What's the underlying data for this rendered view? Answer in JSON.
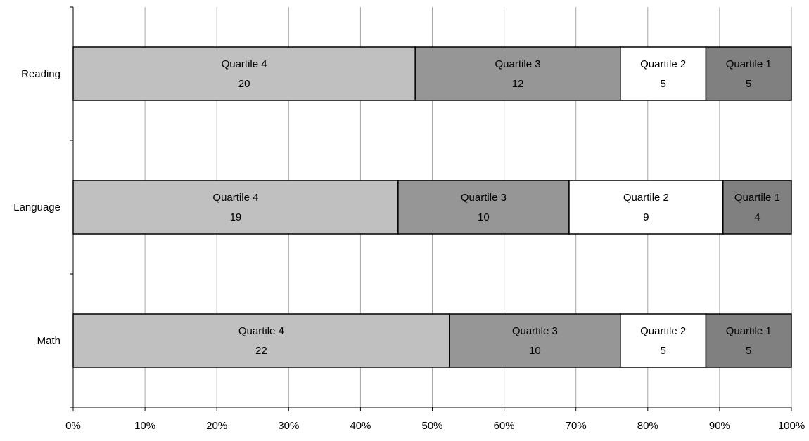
{
  "chart_data": {
    "type": "bar",
    "orientation": "horizontal",
    "stacked": "percent",
    "categories": [
      "Reading",
      "Language",
      "Math"
    ],
    "series": [
      {
        "name": "Quartile 4",
        "values": [
          20,
          19,
          22
        ],
        "color": "#c0c0c0"
      },
      {
        "name": "Quartile 3",
        "values": [
          12,
          10,
          10
        ],
        "color": "#969696"
      },
      {
        "name": "Quartile 2",
        "values": [
          5,
          9,
          5
        ],
        "color": "#ffffff"
      },
      {
        "name": "Quartile 1",
        "values": [
          5,
          4,
          5
        ],
        "color": "#808080"
      }
    ],
    "x_ticks": [
      "0%",
      "10%",
      "20%",
      "30%",
      "40%",
      "50%",
      "60%",
      "70%",
      "80%",
      "90%",
      "100%"
    ],
    "xlim": [
      0,
      100
    ],
    "grid": "vertical",
    "legend": "none",
    "title": "",
    "xlabel": "",
    "ylabel": ""
  }
}
